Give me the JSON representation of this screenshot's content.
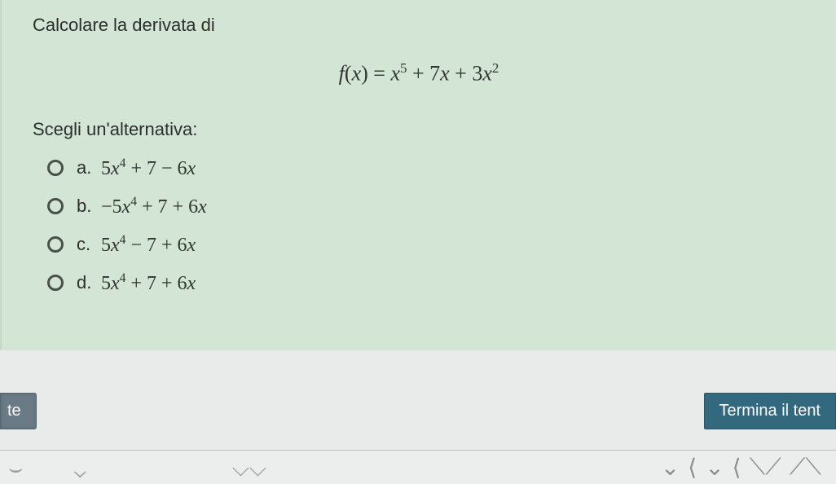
{
  "colors": {
    "panel_bg": "#d3e5d5",
    "page_bg": "#e8ebe9",
    "text": "#2b2e2c",
    "math_text": "#2f3431",
    "radio_border": "#4a4f4c",
    "btn_left_bg": "#6a7b85",
    "btn_right_bg": "#33697e",
    "btn_text": "#ffffff",
    "strip_border": "#b9bdbb"
  },
  "font_sizes": {
    "question": 22,
    "formula": 26,
    "choose": 22,
    "option_letter": 22,
    "option_math": 24,
    "button": 20
  },
  "question": {
    "prompt": "Calcolare la derivata di",
    "formula_html": "<i>f</i>(<i>x</i>) = <i>x</i><sup>5</sup> + 7<i>x</i> + 3<i>x</i><sup>2</sup>",
    "choose_label": "Scegli un'alternativa:"
  },
  "options": [
    {
      "letter": "a.",
      "math_html": "5<i>x</i><sup>4</sup> + 7 &minus; 6<i>x</i>"
    },
    {
      "letter": "b.",
      "math_html": "&minus;5<i>x</i><sup>4</sup> + 7 + 6<i>x</i>"
    },
    {
      "letter": "c.",
      "math_html": "5<i>x</i><sup>4</sup> &minus; 7 + 6<i>x</i>"
    },
    {
      "letter": "d.",
      "math_html": "5<i>x</i><sup>4</sup> + 7 + 6<i>x</i>"
    }
  ],
  "buttons": {
    "left_label": "te",
    "right_label": "Termina il tent"
  }
}
